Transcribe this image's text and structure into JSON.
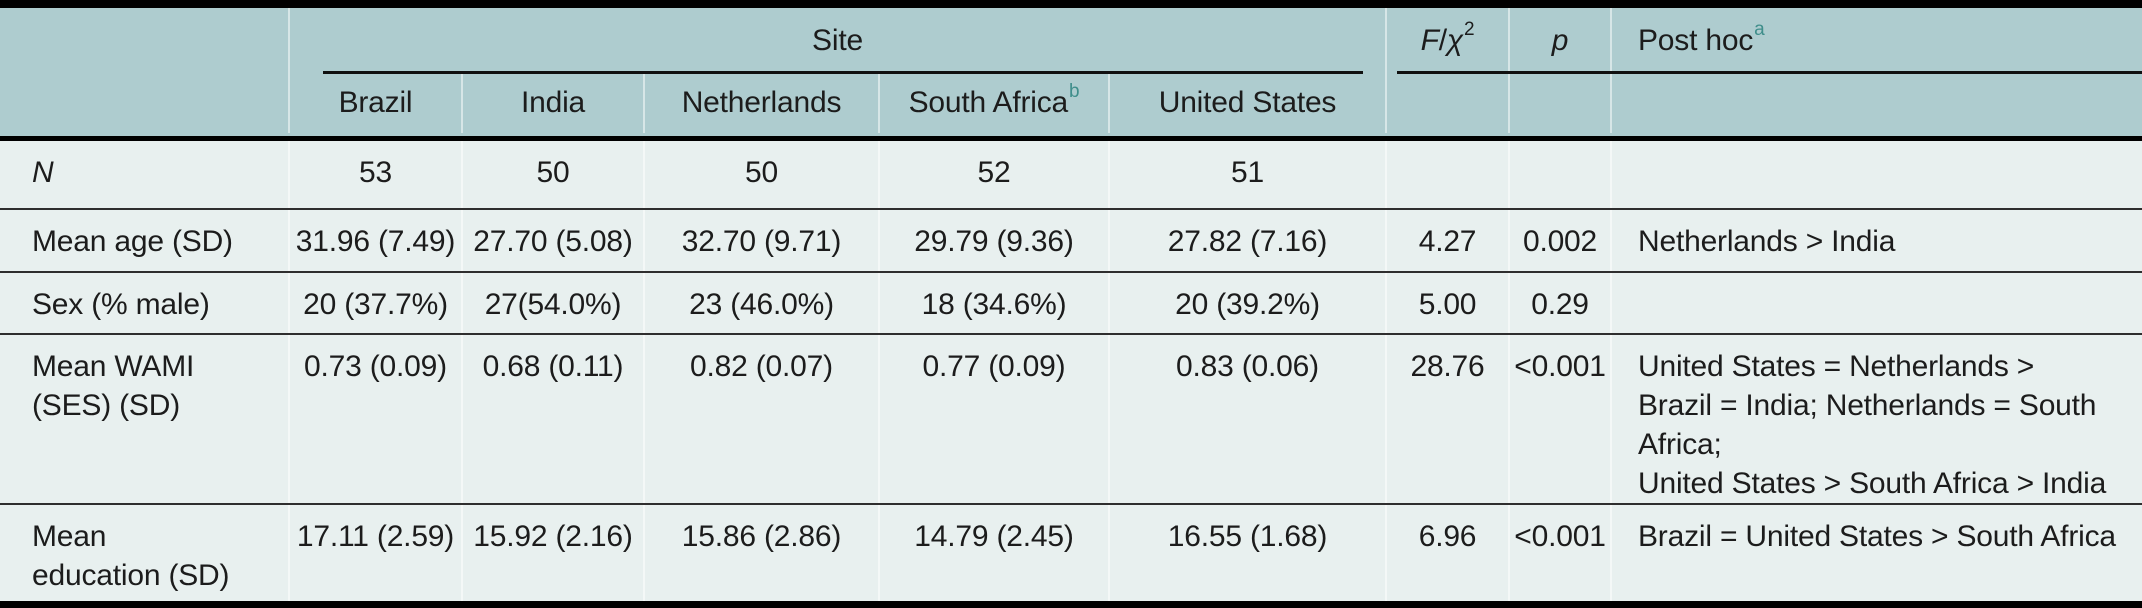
{
  "table": {
    "header": {
      "site": "Site",
      "f_chi": {
        "f": "F",
        "slash": "/",
        "chi": "χ",
        "sup": "2"
      },
      "p": "p",
      "post_hoc": {
        "label": "Post hoc",
        "sup": "a"
      },
      "sites": [
        {
          "label": "Brazil"
        },
        {
          "label": "India"
        },
        {
          "label": "Netherlands"
        },
        {
          "label": "South Africa",
          "sup": "b"
        },
        {
          "label": "United States"
        }
      ]
    },
    "rows": [
      {
        "label_lines": [
          "N"
        ],
        "values": [
          "53",
          "50",
          "50",
          "52",
          "51"
        ],
        "f": "",
        "p": "",
        "post_hoc_lines": []
      },
      {
        "label_lines": [
          "Mean age (SD)"
        ],
        "values": [
          "31.96 (7.49)",
          "27.70 (5.08)",
          "32.70 (9.71)",
          "29.79 (9.36)",
          "27.82 (7.16)"
        ],
        "f": "4.27",
        "p": "0.002",
        "post_hoc_lines": [
          "Netherlands > India"
        ]
      },
      {
        "label_lines": [
          "Sex (% male)"
        ],
        "values": [
          "20 (37.7%)",
          "27(54.0%)",
          "23 (46.0%)",
          "18 (34.6%)",
          "20 (39.2%)"
        ],
        "f": "5.00",
        "p": "0.29",
        "post_hoc_lines": []
      },
      {
        "label_lines": [
          "Mean WAMI",
          "(SES) (SD)"
        ],
        "values": [
          "0.73 (0.09)",
          "0.68 (0.11)",
          "0.82 (0.07)",
          "0.77 (0.09)",
          "0.83 (0.06)"
        ],
        "f": "28.76",
        "p": "<0.001",
        "post_hoc_lines": [
          "United States = Netherlands >",
          "Brazil = India; Netherlands = South",
          "Africa;",
          "United States > South Africa > India"
        ]
      },
      {
        "label_lines": [
          "Mean",
          "education (SD)"
        ],
        "values": [
          "17.11 (2.59)",
          "15.92 (2.16)",
          "15.86 (2.86)",
          "14.79 (2.45)",
          "16.55 (1.68)"
        ],
        "f": "6.96",
        "p": "<0.001",
        "post_hoc_lines": [
          "Brazil = United States > South Africa"
        ]
      }
    ],
    "colors": {
      "header_bg": "#aecccf",
      "body_bg": "#e8f0ef",
      "rule": "#000000",
      "superscript_accent": "#3f8e8b"
    }
  }
}
